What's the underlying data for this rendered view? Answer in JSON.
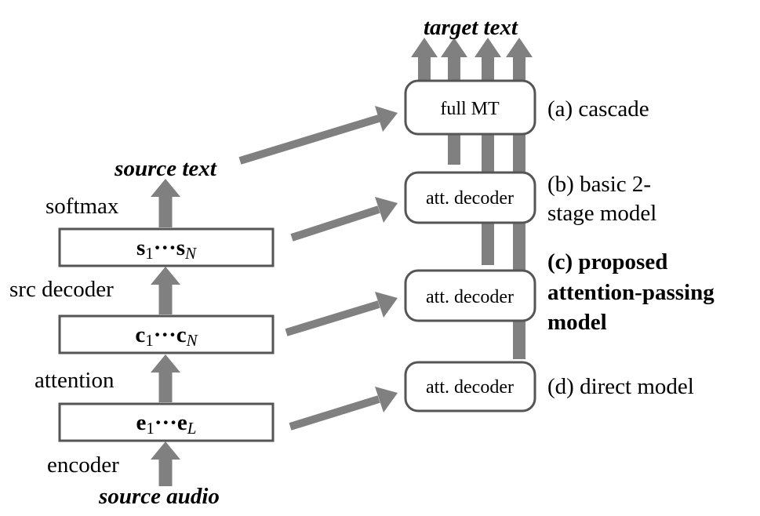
{
  "left_column": {
    "input_label": "source audio",
    "encoder_label": "encoder",
    "attention_label": "attention",
    "src_decoder_label": "src decoder",
    "softmax_label": "softmax",
    "output_label": "source text",
    "box_e": {
      "vec": "e",
      "sub_first": "1",
      "dots": "···",
      "vec2": "e",
      "sub_last": "L"
    },
    "box_c": {
      "vec": "c",
      "sub_first": "1",
      "dots": "···",
      "vec2": "c",
      "sub_last": "N"
    },
    "box_s": {
      "vec": "s",
      "sub_first": "1",
      "dots": "···",
      "vec2": "s",
      "sub_last": "N"
    }
  },
  "right_column": {
    "output_label": "target text",
    "full_mt_label": "full MT",
    "att_decoder_label": "att. decoder",
    "cascade_label": "(a) cascade",
    "basic_line1": "(b) basic 2-",
    "basic_line2": "stage model",
    "proposed_line1": "(c) proposed",
    "proposed_line2": "attention-passing",
    "proposed_line3": "model",
    "direct_label": "(d) direct model"
  },
  "colors": {
    "arrow": "#808080",
    "box_stroke": "#555555",
    "text": "#000000",
    "background": "#ffffff"
  }
}
